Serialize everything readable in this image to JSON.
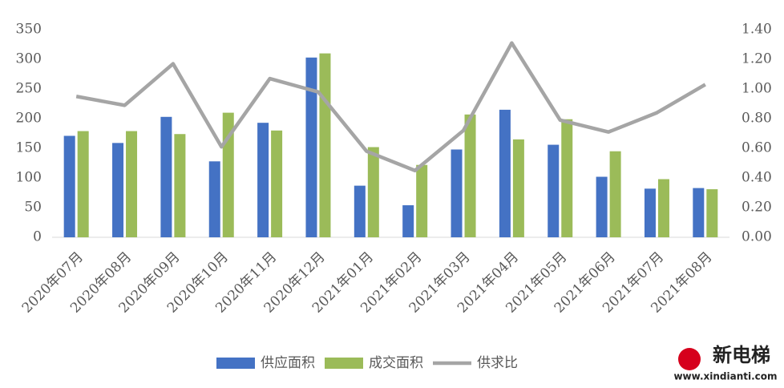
{
  "chart_data": {
    "type": "bar",
    "categories": [
      "2020年07月",
      "2020年08月",
      "2020年09月",
      "2020年10月",
      "2020年11月",
      "2020年12月",
      "2021年01月",
      "2021年02月",
      "2021年03月",
      "2021年04月",
      "2021年05月",
      "2021年06月",
      "2021年07月",
      "2021年08月"
    ],
    "series": [
      {
        "name": "供应面积",
        "color": "#4472c4",
        "type": "bar",
        "values": [
          171,
          159,
          203,
          128,
          193,
          303,
          87,
          54,
          148,
          215,
          156,
          102,
          82,
          83
        ]
      },
      {
        "name": "成交面积",
        "color": "#9bbb59",
        "type": "bar",
        "values": [
          179,
          179,
          174,
          210,
          180,
          310,
          152,
          122,
          207,
          165,
          199,
          145,
          98,
          81
        ]
      },
      {
        "name": "供求比",
        "color": "#a5a5a5",
        "type": "line",
        "axis": "y2",
        "values": [
          0.95,
          0.89,
          1.17,
          0.61,
          1.07,
          0.98,
          0.58,
          0.45,
          0.72,
          1.31,
          0.79,
          0.71,
          0.84,
          1.03
        ]
      }
    ],
    "ylim": [
      0,
      350
    ],
    "yticks": [
      0,
      50,
      100,
      150,
      200,
      250,
      300,
      350
    ],
    "y2lim": [
      0,
      1.4
    ],
    "y2ticks": [
      {
        "value": 0,
        "label": "0.00"
      },
      {
        "value": 0.2,
        "label": "0.20"
      },
      {
        "value": 0.4,
        "label": "0.40"
      },
      {
        "value": 0.6,
        "label": "0.60"
      },
      {
        "value": 0.8,
        "label": "0.80"
      },
      {
        "value": 1.0,
        "label": "1.00"
      },
      {
        "value": 1.2,
        "label": "1.20"
      },
      {
        "value": 1.4,
        "label": "1.40"
      }
    ],
    "grid": false,
    "legend": "bottom",
    "watermark": {
      "name": "新电梯",
      "url": "www.xindianti.com"
    }
  }
}
